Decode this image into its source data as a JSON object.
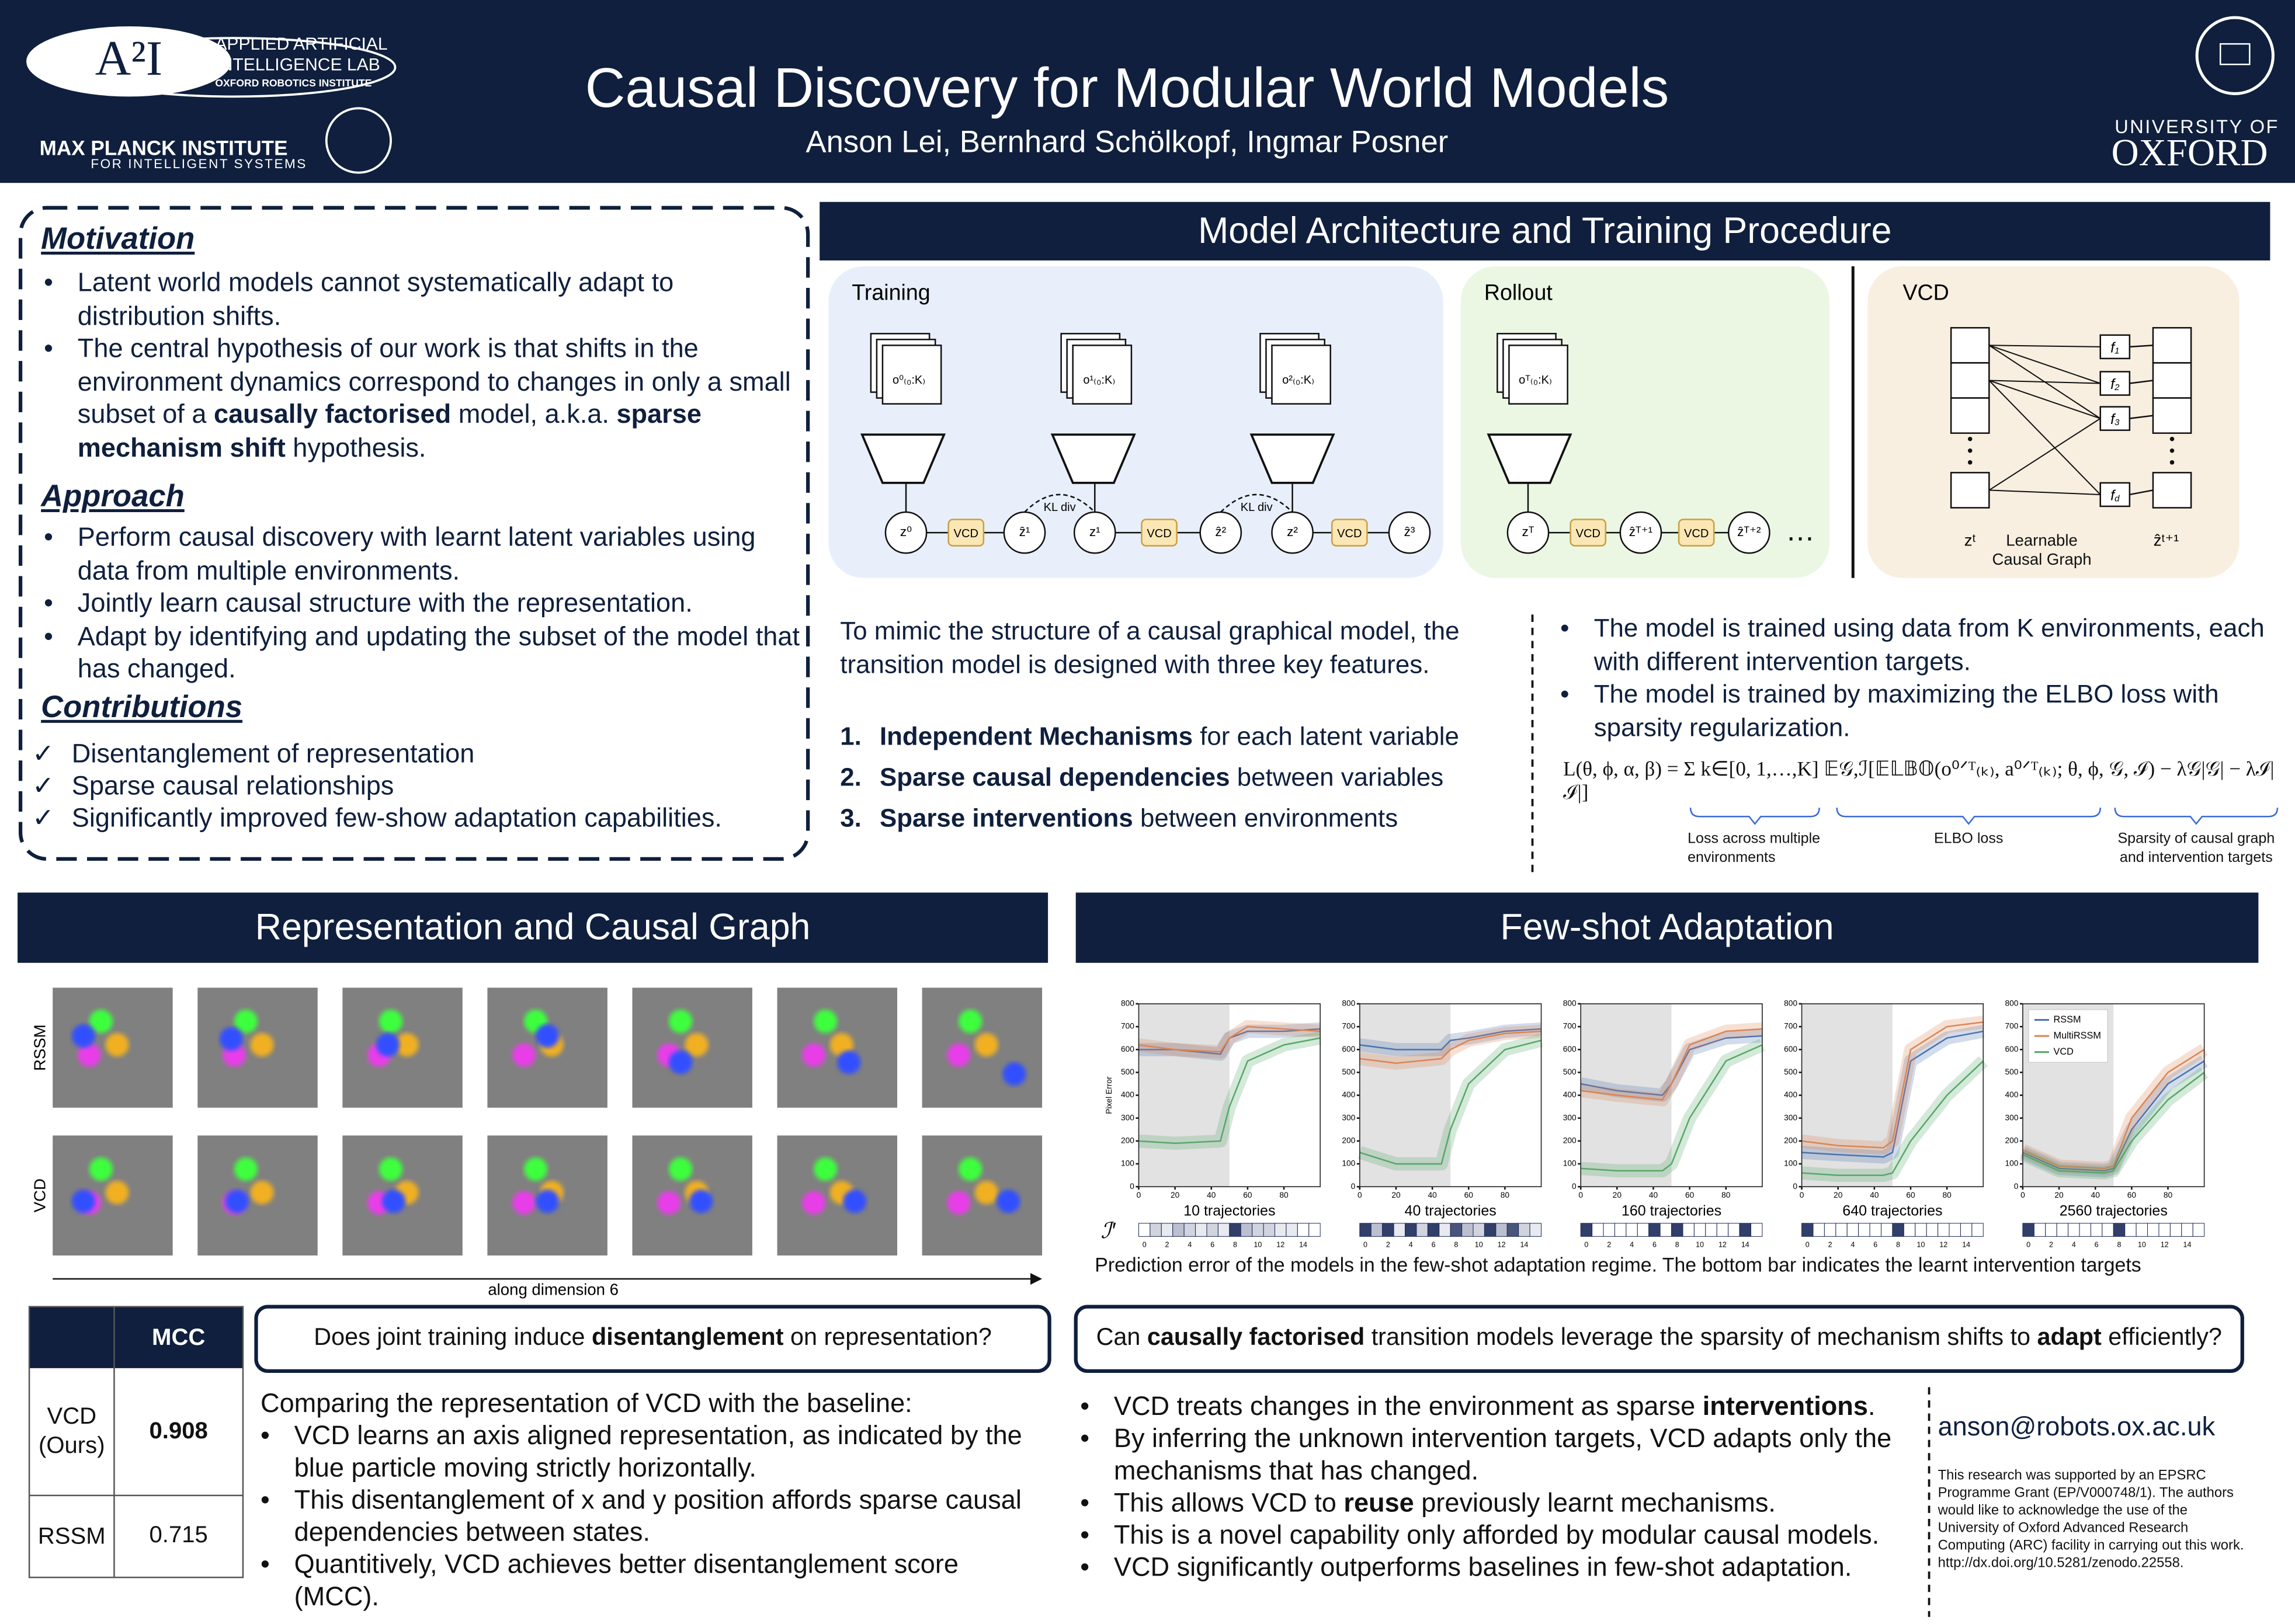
{
  "header": {
    "title": "Causal Discovery for Modular World Models",
    "authors": "Anson Lei, Bernhard Schölkopf, Ingmar Posner",
    "logo": "A²I",
    "lab": [
      "APPLIED ARTIFICIAL",
      "INTELLIGENCE LAB",
      "OXFORD ROBOTICS INSTITUTE"
    ],
    "mpi": [
      "MAX PLANCK INSTITUTE",
      "FOR INTELLIGENT SYSTEMS"
    ],
    "oxford": [
      "UNIVERSITY OF",
      "OXFORD"
    ]
  },
  "motivation": {
    "heading": "Motivation",
    "bullets": [
      "Latent world models cannot systematically adapt to distribution shifts.",
      [
        {
          "text": "The central hypothesis of our work is that shifts in the environment dynamics correspond to changes in only a small subset of a ",
          "bold": false
        },
        {
          "text": "causally factorised",
          "bold": true
        },
        {
          "text": " model, a.k.a. ",
          "bold": false
        },
        {
          "text": "sparse mechanism shift",
          "bold": true
        },
        {
          "text": " hypothesis.",
          "bold": false
        }
      ]
    ]
  },
  "approach": {
    "heading": "Approach",
    "bullets": [
      "Perform causal discovery with learnt latent variables using data from multiple environments.",
      "Jointly learn causal structure with the representation.",
      "Adapt by identifying and updating the subset of the model that has changed."
    ]
  },
  "contributions": {
    "heading": "Contributions",
    "items": [
      "Disentanglement of representation",
      "Sparse causal relationships",
      "Significantly improved few-show adaptation capabilities."
    ]
  },
  "architecture": {
    "heading": "Model Architecture and Training Procedure",
    "training": {
      "label": "Training",
      "obs": [
        "o⁰₍₀:K₎",
        "o¹₍₀:K₎",
        "o²₍₀:K₎"
      ],
      "nodes": [
        "z⁰",
        "VCD",
        "ẑ¹",
        "z¹",
        "VCD",
        "ẑ²",
        "z²",
        "VCD",
        "ẑ³"
      ],
      "kl": "KL div"
    },
    "rollout": {
      "label": "Rollout",
      "obs": "oᵀ₍₀:K₎",
      "nodes": [
        "zᵀ",
        "VCD",
        "ẑᵀ⁺¹",
        "VCD",
        "ẑᵀ⁺²",
        "…"
      ]
    },
    "vcd": {
      "label": "VCD",
      "functions": [
        [
          "f",
          "1"
        ],
        [
          "f",
          "2"
        ],
        [
          "f",
          "3"
        ],
        [
          "f",
          "d"
        ]
      ],
      "z_in": "zᵗ",
      "z_out": "ẑᵗ⁺¹",
      "graph": "Learnable Causal Graph"
    },
    "intro": "To mimic the structure of a causal graphical model, the transition model is designed with three key features.",
    "features": [
      [
        {
          "text": "Independent Mechanisms",
          "bold": true
        },
        {
          "text": " for each latent variable",
          "bold": false
        }
      ],
      [
        {
          "text": "Sparse causal dependencies",
          "bold": true
        },
        {
          "text": " between variables",
          "bold": false
        }
      ],
      [
        {
          "text": "Sparse interventions",
          "bold": true
        },
        {
          "text": " between environments",
          "bold": false
        }
      ]
    ],
    "bullets": [
      "The model is trained using data from K environments, each with different intervention targets.",
      "The model is trained by maximizing the ELBO loss with sparsity regularization."
    ],
    "equation": "L(θ, ϕ, α, β) = Σ k∈[0, 1,…,K]  𝔼𝒢,ℐ[𝔼𝕃𝔹𝕆(o⁰ᐟᵀ₍ₖ₎, a⁰ᐟᵀ₍ₖ₎; θ, ϕ, 𝒢, ℐ) − λ𝒢|𝒢| − λℐ|ℐ|]",
    "brace_labels": [
      "Loss across multiple environments",
      "ELBO loss",
      "Sparsity of causal graph and intervention targets"
    ]
  },
  "representation": {
    "heading": "Representation and Causal Graph",
    "row_labels": [
      "RSSM",
      "VCD"
    ],
    "axis_label": "along dimension 6",
    "table": {
      "header": "MCC",
      "rows": [
        [
          "VCD (Ours)",
          0.908
        ],
        [
          "RSSM",
          0.715
        ]
      ]
    },
    "question": [
      {
        "text": "Does joint training induce ",
        "bold": false
      },
      {
        "text": "disentanglement",
        "bold": true
      },
      {
        "text": " on representation?",
        "bold": false
      }
    ],
    "intro": "Comparing the representation of VCD with the baseline:",
    "bullets": [
      "VCD learns an axis aligned representation, as indicated by the blue particle moving strictly horizontally.",
      "This disentanglement of x and y position affords sparse causal dependencies between states.",
      "Quantitively, VCD achieves better disentanglement score (MCC)."
    ]
  },
  "few_shot": {
    "heading": "Few-shot Adaptation",
    "caption": "Prediction error of the models  in the few-shot adaptation regime. The bottom bar indicates the learnt intervention targets",
    "question": [
      {
        "text": "Can ",
        "bold": false
      },
      {
        "text": "causally factorised",
        "bold": true
      },
      {
        "text": " transition models leverage the sparsity of mechanism shifts to ",
        "bold": false
      },
      {
        "text": "adapt",
        "bold": true
      },
      {
        "text": " efficiently?",
        "bold": false
      }
    ],
    "bullets": [
      [
        {
          "text": "VCD treats changes in the environment as sparse ",
          "bold": false
        },
        {
          "text": "interventions",
          "bold": true
        },
        {
          "text": ".",
          "bold": false
        }
      ],
      "By inferring the unknown intervention targets, VCD adapts only the mechanisms that has changed.",
      [
        {
          "text": "This allows VCD to ",
          "bold": false
        },
        {
          "text": "reuse",
          "bold": true
        },
        {
          "text": " previously learnt mechanisms.",
          "bold": false
        }
      ],
      "This is a novel capability only afforded by modular causal models.",
      "VCD significantly outperforms baselines in few-shot adaptation."
    ],
    "email": "anson@robots.ox.ac.uk",
    "funding": "This research was supported by an EPSRC Programme Grant (EP/V000748/1). The authors would like to acknowledge the use of the University of Oxford Advanced Research Computing (ARC) facility in carrying out this work. http://dx.doi.org/10.5281/zenodo.22558."
  },
  "chart_data": [
    {
      "type": "line",
      "title": "10 trajectories",
      "ylabel": "Pixel Error",
      "intervention_label": "ℐ′",
      "x": [
        0,
        20,
        45,
        50,
        60,
        80,
        100
      ],
      "xlim": [
        0,
        100
      ],
      "ylim": [
        0,
        800
      ],
      "xticks": [
        0,
        20,
        40,
        60,
        80
      ],
      "yticks": [
        0,
        100,
        200,
        300,
        400,
        500,
        600,
        700,
        800
      ],
      "shaded_x": [
        0,
        50
      ],
      "series": [
        {
          "name": "RSSM",
          "color": "#4c72b0",
          "values": [
            600,
            600,
            580,
            650,
            680,
            680,
            690
          ]
        },
        {
          "name": "MultiRSSM",
          "color": "#dd8452",
          "values": [
            620,
            600,
            590,
            650,
            700,
            690,
            680
          ]
        },
        {
          "name": "VCD",
          "color": "#55a868",
          "values": [
            200,
            190,
            200,
            350,
            550,
            620,
            650
          ]
        }
      ],
      "interventions": [
        0,
        0.2,
        0.1,
        0.3,
        0.2,
        0.1,
        0.2,
        0.1,
        0.9,
        0.3,
        0.2,
        0.2,
        0.1,
        0.1,
        0,
        0
      ],
      "intervention_ticks": [
        0,
        2,
        4,
        6,
        8,
        10,
        12,
        14
      ]
    },
    {
      "type": "line",
      "title": "40 trajectories",
      "x": [
        0,
        20,
        45,
        50,
        60,
        80,
        100
      ],
      "xlim": [
        0,
        100
      ],
      "ylim": [
        0,
        800
      ],
      "xticks": [
        0,
        20,
        40,
        60,
        80
      ],
      "yticks": [
        0,
        100,
        200,
        300,
        400,
        500,
        600,
        700,
        800
      ],
      "shaded_x": [
        0,
        50
      ],
      "series": [
        {
          "name": "RSSM",
          "color": "#4c72b0",
          "values": [
            620,
            600,
            600,
            640,
            650,
            680,
            690
          ]
        },
        {
          "name": "MultiRSSM",
          "color": "#dd8452",
          "values": [
            560,
            540,
            560,
            600,
            640,
            670,
            680
          ]
        },
        {
          "name": "VCD",
          "color": "#55a868",
          "values": [
            150,
            100,
            100,
            250,
            450,
            600,
            640
          ]
        }
      ],
      "interventions": [
        0.9,
        0.3,
        0.9,
        0.1,
        0.9,
        0.2,
        0.9,
        0.1,
        0.8,
        0.3,
        0.2,
        0.9,
        0.3,
        0.8,
        0.2,
        0.1
      ],
      "intervention_ticks": [
        0,
        2,
        4,
        6,
        8,
        10,
        12,
        14
      ]
    },
    {
      "type": "line",
      "title": "160 trajectories",
      "x": [
        0,
        20,
        45,
        50,
        60,
        80,
        100
      ],
      "xlim": [
        0,
        100
      ],
      "ylim": [
        0,
        800
      ],
      "xticks": [
        0,
        20,
        40,
        60,
        80
      ],
      "yticks": [
        0,
        100,
        200,
        300,
        400,
        500,
        600,
        700,
        800
      ],
      "shaded_x": [
        0,
        50
      ],
      "series": [
        {
          "name": "RSSM",
          "color": "#4c72b0",
          "values": [
            450,
            420,
            400,
            450,
            600,
            650,
            660
          ]
        },
        {
          "name": "MultiRSSM",
          "color": "#dd8452",
          "values": [
            420,
            400,
            380,
            450,
            620,
            680,
            690
          ]
        },
        {
          "name": "VCD",
          "color": "#55a868",
          "values": [
            80,
            70,
            70,
            100,
            300,
            550,
            620
          ]
        }
      ],
      "interventions": [
        0.9,
        0,
        0,
        0,
        0,
        0,
        0.9,
        0,
        0.9,
        0,
        0,
        0,
        0,
        0,
        0.9,
        0
      ],
      "intervention_ticks": [
        0,
        2,
        4,
        6,
        8,
        10,
        12,
        14
      ]
    },
    {
      "type": "line",
      "title": "640 trajectories",
      "x": [
        0,
        20,
        45,
        50,
        60,
        80,
        100
      ],
      "xlim": [
        0,
        100
      ],
      "ylim": [
        0,
        800
      ],
      "xticks": [
        0,
        20,
        40,
        60,
        80
      ],
      "yticks": [
        0,
        100,
        200,
        300,
        400,
        500,
        600,
        700,
        800
      ],
      "shaded_x": [
        0,
        50
      ],
      "series": [
        {
          "name": "RSSM",
          "color": "#4c72b0",
          "values": [
            150,
            140,
            130,
            150,
            550,
            650,
            680
          ]
        },
        {
          "name": "MultiRSSM",
          "color": "#dd8452",
          "values": [
            200,
            180,
            170,
            200,
            600,
            700,
            720
          ]
        },
        {
          "name": "VCD",
          "color": "#55a868",
          "values": [
            60,
            50,
            50,
            60,
            200,
            400,
            550
          ]
        }
      ],
      "interventions": [
        0.9,
        0,
        0,
        0,
        0,
        0,
        0,
        0,
        0.9,
        0,
        0,
        0,
        0,
        0,
        0,
        0
      ],
      "intervention_ticks": [
        0,
        2,
        4,
        6,
        8,
        10,
        12,
        14
      ]
    },
    {
      "type": "line",
      "title": "2560 trajectories",
      "legend": "upper left",
      "x": [
        0,
        20,
        45,
        50,
        60,
        80,
        100
      ],
      "xlim": [
        0,
        100
      ],
      "ylim": [
        0,
        800
      ],
      "xticks": [
        0,
        20,
        40,
        60,
        80
      ],
      "yticks": [
        0,
        100,
        200,
        300,
        400,
        500,
        600,
        700,
        800
      ],
      "shaded_x": [
        0,
        50
      ],
      "series": [
        {
          "name": "RSSM",
          "color": "#4c72b0",
          "values": [
            150,
            80,
            70,
            80,
            250,
            450,
            550
          ]
        },
        {
          "name": "MultiRSSM",
          "color": "#dd8452",
          "values": [
            160,
            90,
            80,
            90,
            300,
            500,
            600
          ]
        },
        {
          "name": "VCD",
          "color": "#55a868",
          "values": [
            140,
            70,
            60,
            70,
            200,
            380,
            500
          ]
        }
      ],
      "interventions": [
        0.9,
        0,
        0,
        0,
        0,
        0,
        0,
        0,
        0.9,
        0,
        0,
        0,
        0,
        0,
        0,
        0
      ],
      "intervention_ticks": [
        0,
        2,
        4,
        6,
        8,
        10,
        12,
        14
      ]
    }
  ]
}
